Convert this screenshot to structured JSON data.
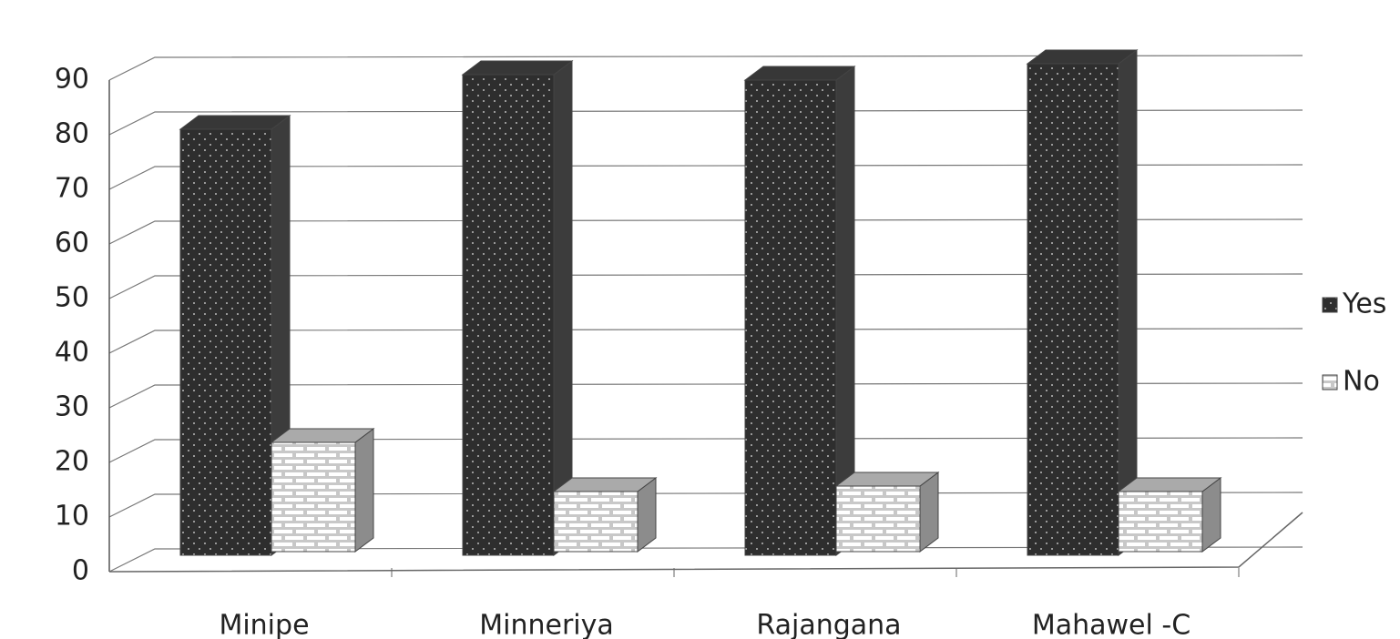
{
  "chart_data": {
    "type": "bar",
    "categories": [
      "Minipe",
      "Minneriya",
      "Rajangana",
      "Mahawel -C"
    ],
    "series": [
      {
        "name": "Yes",
        "color": "#2e2e2e",
        "values": [
          78,
          88,
          87,
          90
        ]
      },
      {
        "name": "No",
        "color": "#c8c8c8",
        "values": [
          20,
          11,
          12,
          11
        ]
      }
    ],
    "ylim": [
      0,
      90
    ],
    "yticks": [
      0,
      10,
      20,
      30,
      40,
      50,
      60,
      70,
      80,
      90
    ],
    "grid": true,
    "legend": "right"
  }
}
